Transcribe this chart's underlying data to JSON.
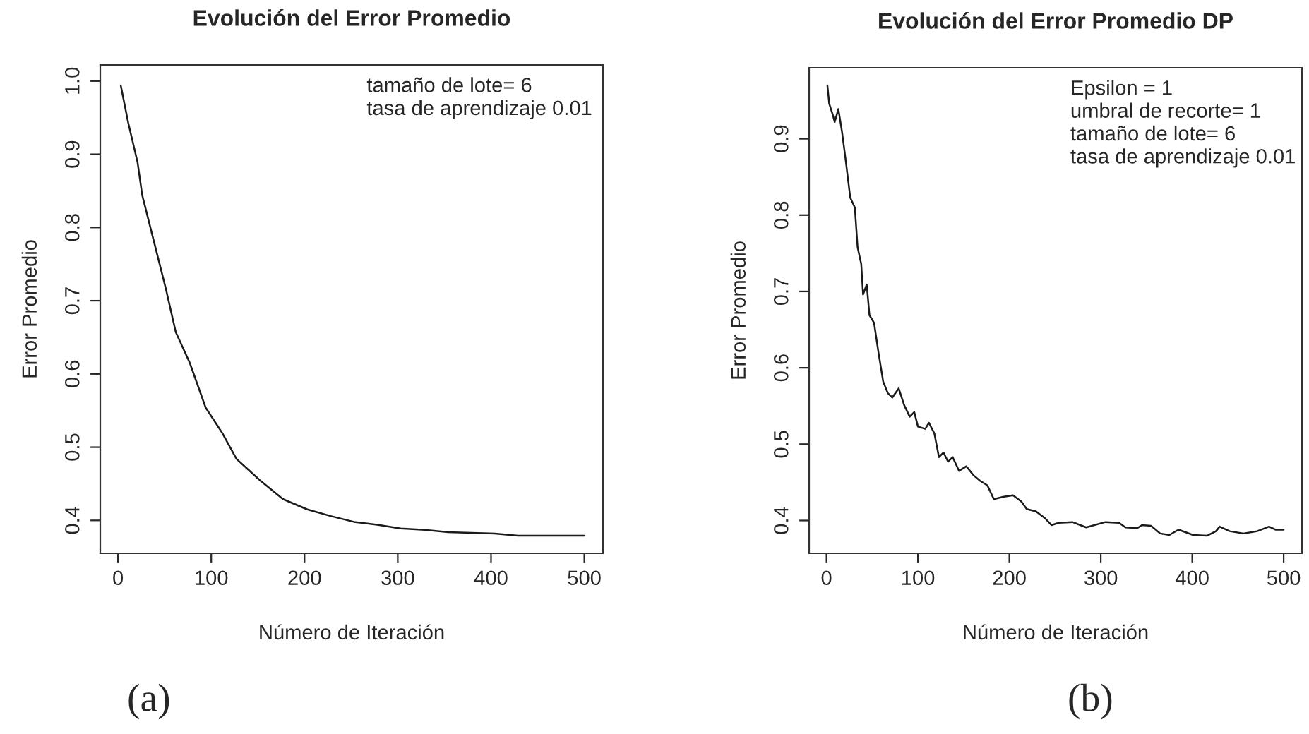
{
  "chart_data": [
    {
      "type": "line",
      "title": "Evolución del Error Promedio",
      "xlabel": "Número de Iteración",
      "ylabel": "Error Promedio",
      "color": "#1a1a1a",
      "x": [
        3,
        11,
        21,
        26,
        51,
        62,
        77,
        94,
        112,
        127,
        152,
        177,
        203,
        228,
        253,
        278,
        303,
        329,
        354,
        404,
        429,
        500
      ],
      "values": [
        0.994,
        0.943,
        0.889,
        0.844,
        0.718,
        0.657,
        0.615,
        0.554,
        0.519,
        0.484,
        0.455,
        0.429,
        0.415,
        0.406,
        0.398,
        0.394,
        0.389,
        0.387,
        0.384,
        0.382,
        0.379,
        0.379
      ],
      "xlim": [
        -19,
        520
      ],
      "ylim": [
        0.355,
        1.022
      ],
      "xticks": [
        0,
        100,
        200,
        300,
        400,
        500
      ],
      "yticks": [
        0.4,
        0.5,
        0.6,
        0.7,
        0.8,
        0.9,
        {
          "value": 1.0,
          "label": "1.0"
        }
      ],
      "annotations": [
        "tamaño de lote= 6",
        "tasa de aprendizaje 0.01",
        "(a)"
      ]
    },
    {
      "type": "line",
      "title": "Evolución del Error Promedio DP",
      "xlabel": "Número de Iteración",
      "ylabel": "Error Promedio",
      "color": "#1a1a1a",
      "x": [
        1,
        3,
        7,
        9,
        13,
        17,
        21,
        26,
        31,
        34,
        38,
        40,
        44,
        47,
        52,
        57,
        62,
        67,
        72,
        79,
        85,
        91,
        96,
        100,
        108,
        112,
        118,
        123,
        128,
        133,
        138,
        145,
        153,
        161,
        168,
        176,
        183,
        193,
        204,
        213,
        219,
        229,
        239,
        246,
        254,
        269,
        284,
        305,
        320,
        327,
        340,
        345,
        355,
        365,
        375,
        385,
        401,
        416,
        426,
        430,
        441,
        456,
        471,
        484,
        491,
        500
      ],
      "values": [
        0.97,
        0.946,
        0.931,
        0.922,
        0.939,
        0.909,
        0.872,
        0.823,
        0.81,
        0.758,
        0.736,
        0.696,
        0.709,
        0.669,
        0.659,
        0.619,
        0.582,
        0.567,
        0.561,
        0.573,
        0.551,
        0.536,
        0.542,
        0.523,
        0.52,
        0.528,
        0.514,
        0.483,
        0.489,
        0.477,
        0.483,
        0.465,
        0.471,
        0.459,
        0.452,
        0.446,
        0.428,
        0.431,
        0.433,
        0.425,
        0.415,
        0.412,
        0.403,
        0.394,
        0.397,
        0.398,
        0.391,
        0.398,
        0.397,
        0.391,
        0.39,
        0.394,
        0.393,
        0.383,
        0.381,
        0.388,
        0.381,
        0.38,
        0.386,
        0.392,
        0.386,
        0.383,
        0.386,
        0.392,
        0.388,
        0.388
      ],
      "xlim": [
        -19,
        520
      ],
      "ylim": [
        0.357,
        0.993
      ],
      "xticks": [
        0,
        100,
        200,
        300,
        400,
        500
      ],
      "yticks": [
        0.4,
        0.5,
        0.6,
        0.7,
        0.8,
        0.9
      ],
      "annotations": [
        "Epsilon = 1",
        "umbral de recorte= 1",
        "tamaño de lote= 6",
        "tasa de aprendizaje 0.01",
        "(b)"
      ]
    }
  ]
}
